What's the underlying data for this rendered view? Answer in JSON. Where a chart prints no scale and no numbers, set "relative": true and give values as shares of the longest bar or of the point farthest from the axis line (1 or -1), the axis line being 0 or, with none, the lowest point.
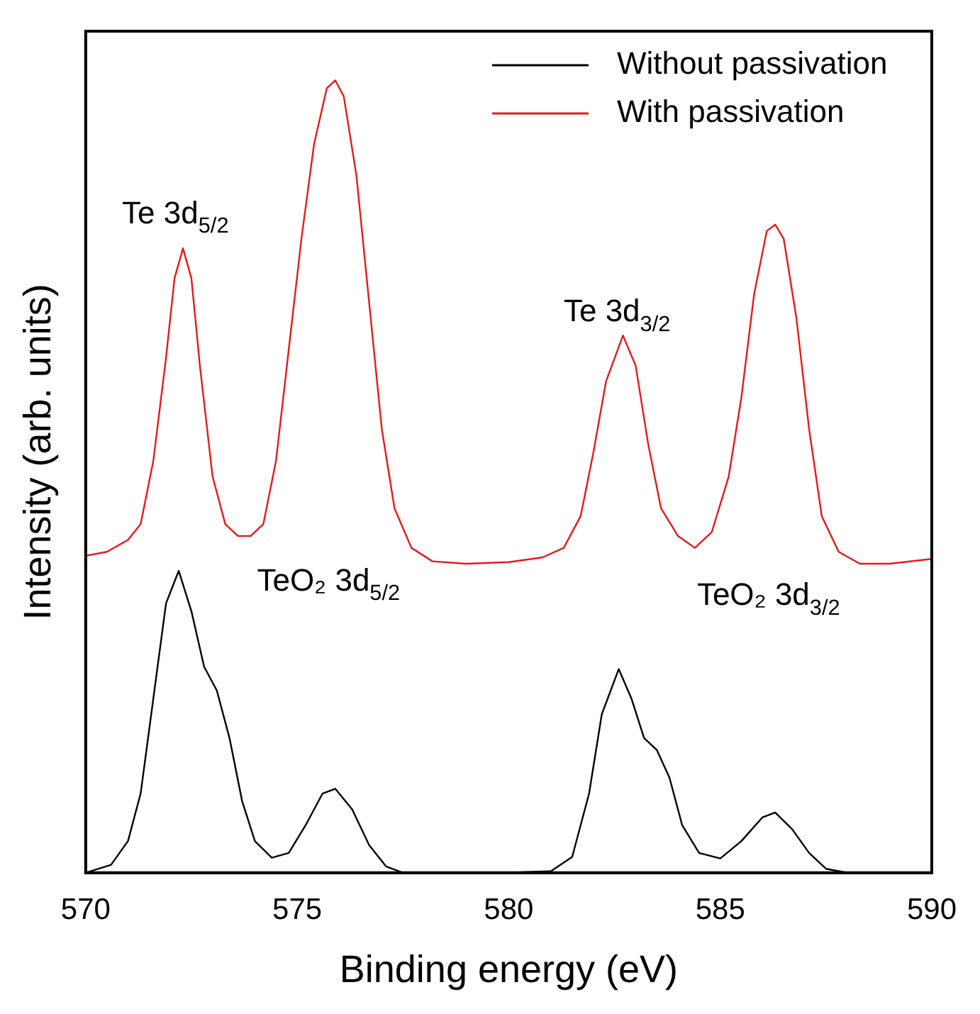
{
  "chart_data": {
    "type": "line",
    "relative": true,
    "xlabel": "Binding energy (eV)",
    "ylabel": "Intensity (arb. units)",
    "xlim": [
      570,
      590
    ],
    "xticks": [
      570,
      575,
      580,
      585,
      590
    ],
    "legend": "top right",
    "marker": "none",
    "line_style": "solid",
    "grid": false,
    "annotations": [
      "Te 3d$_{5/2}$",
      "TeO₂ 3d$_{5/2}$",
      "Te 3d$_{3/2}$",
      "TeO₂ 3d$_{3/2}$"
    ],
    "series": [
      {
        "name": "Without passivation",
        "color": "#000000",
        "x": [
          570,
          570.6,
          571,
          571.3,
          571.6,
          571.9,
          572.2,
          572.5,
          572.8,
          573.1,
          573.4,
          573.7,
          574,
          574.4,
          574.8,
          575.2,
          575.6,
          575.9,
          576.3,
          576.7,
          577.1,
          577.5,
          580,
          581,
          581.5,
          581.9,
          582.2,
          582.6,
          582.9,
          583.2,
          583.5,
          583.8,
          584.1,
          584.5,
          585,
          585.5,
          586,
          586.3,
          586.7,
          587.1,
          587.5,
          588,
          590
        ],
        "values": [
          0,
          0.01,
          0.04,
          0.1,
          0.22,
          0.34,
          0.381,
          0.33,
          0.26,
          0.23,
          0.17,
          0.09,
          0.04,
          0.019,
          0.025,
          0.06,
          0.1,
          0.106,
          0.08,
          0.035,
          0.008,
          0,
          0,
          0.002,
          0.02,
          0.1,
          0.2,
          0.257,
          0.22,
          0.17,
          0.155,
          0.12,
          0.06,
          0.025,
          0.018,
          0.04,
          0.07,
          0.076,
          0.055,
          0.025,
          0.005,
          0,
          0
        ]
      },
      {
        "name": "With passivation",
        "color": "#e41a1c",
        "x": [
          570,
          570.5,
          571,
          571.3,
          571.6,
          571.9,
          572.1,
          572.3,
          572.5,
          572.7,
          573,
          573.3,
          573.6,
          573.9,
          574.2,
          574.5,
          574.8,
          575.1,
          575.4,
          575.7,
          575.9,
          576.1,
          576.4,
          576.7,
          577,
          577.3,
          577.7,
          578.2,
          579,
          580,
          580.8,
          581.3,
          581.7,
          582,
          582.3,
          582.7,
          583,
          583.3,
          583.6,
          584,
          584.4,
          584.8,
          585.2,
          585.5,
          585.8,
          586.1,
          586.3,
          586.5,
          586.8,
          587.1,
          587.4,
          587.8,
          588.3,
          589,
          590
        ],
        "values": [
          0.4,
          0.405,
          0.42,
          0.44,
          0.52,
          0.65,
          0.75,
          0.788,
          0.75,
          0.64,
          0.5,
          0.44,
          0.425,
          0.425,
          0.44,
          0.52,
          0.66,
          0.8,
          0.92,
          0.99,
          1,
          0.98,
          0.88,
          0.72,
          0.56,
          0.46,
          0.41,
          0.393,
          0.39,
          0.392,
          0.398,
          0.41,
          0.45,
          0.53,
          0.62,
          0.678,
          0.64,
          0.54,
          0.46,
          0.425,
          0.41,
          0.43,
          0.5,
          0.6,
          0.73,
          0.81,
          0.818,
          0.8,
          0.7,
          0.56,
          0.45,
          0.405,
          0.39,
          0.39,
          0.396
        ]
      }
    ]
  }
}
